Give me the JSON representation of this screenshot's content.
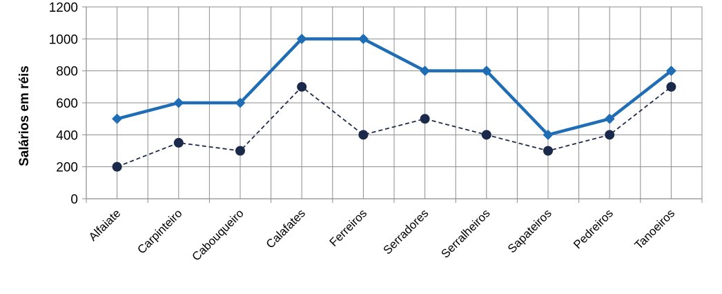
{
  "chart_data": {
    "type": "line",
    "title": "",
    "xlabel": "",
    "ylabel": "Salários em réis",
    "ylim": [
      0,
      1200
    ],
    "yticks": [
      0,
      200,
      400,
      600,
      800,
      1000,
      1200
    ],
    "grid": true,
    "categories": [
      "Alfaiate",
      "Carpinteiro",
      "Cabouqueiro",
      "Calafates",
      "Ferreiros",
      "Serradores",
      "Serralheiros",
      "Sapateiros",
      "Pedreiros",
      "Tanoeiros"
    ],
    "series": [
      {
        "values": [
          500,
          600,
          600,
          1000,
          1000,
          800,
          800,
          400,
          500,
          800
        ],
        "color": "#1f6db5",
        "line_style": "solid",
        "marker": "diamond"
      },
      {
        "values": [
          200,
          350,
          300,
          700,
          400,
          500,
          400,
          300,
          400,
          700
        ],
        "color": "#1b2a4a",
        "line_style": "dashed",
        "marker": "circle"
      }
    ]
  }
}
